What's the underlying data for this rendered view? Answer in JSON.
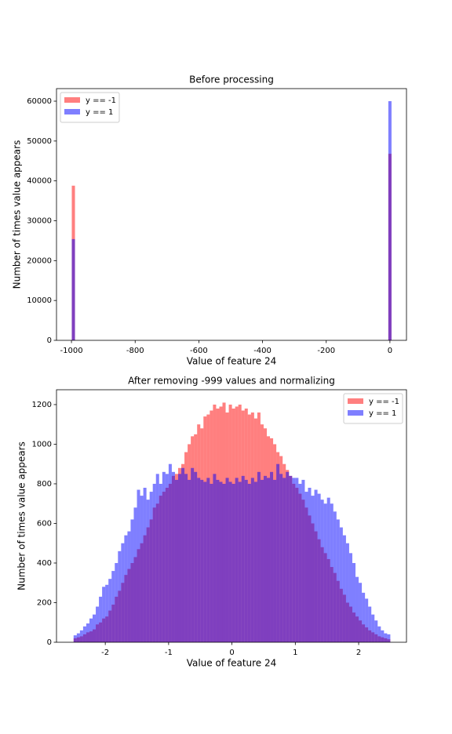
{
  "chart_data": [
    {
      "type": "histogram",
      "title": "Before processing",
      "xlabel": "Value of feature 24",
      "ylabel": "Number of times value appears",
      "bins": [
        -999,
        -989,
        -5,
        5
      ],
      "series": [
        {
          "name": "y == -1",
          "color": "#ff0000",
          "values": [
            38800,
            0,
            46800
          ]
        },
        {
          "name": "y == 1",
          "color": "#0000ff",
          "values": [
            25400,
            0,
            60000
          ]
        }
      ],
      "xlim": [
        -1047,
        52
      ],
      "ylim": [
        0,
        63150
      ],
      "xticks": [
        -1000,
        -800,
        -600,
        -400,
        -200,
        0
      ],
      "yticks": [
        0,
        10000,
        20000,
        30000,
        40000,
        50000,
        60000
      ],
      "legend": "upper left",
      "alpha": 0.5
    },
    {
      "type": "histogram",
      "title": "After removing -999 values and normalizing",
      "xlabel": "Value of feature 24",
      "ylabel": "Number of times value appears",
      "bins": [
        -2.5,
        -2.45,
        -2.4,
        -2.35,
        -2.3,
        -2.25,
        -2.2,
        -2.15,
        -2.1,
        -2.05,
        -2,
        -1.95,
        -1.9,
        -1.85,
        -1.8,
        -1.75,
        -1.7,
        -1.65,
        -1.6,
        -1.55,
        -1.5,
        -1.45,
        -1.4,
        -1.35,
        -1.3,
        -1.25,
        -1.2,
        -1.15,
        -1.1,
        -1.05,
        -1,
        -0.95,
        -0.9,
        -0.85,
        -0.8,
        -0.75,
        -0.7,
        -0.65,
        -0.6,
        -0.55,
        -0.5,
        -0.45,
        -0.4,
        -0.35,
        -0.3,
        -0.25,
        -0.2,
        -0.15,
        -0.1,
        -0.05,
        0,
        0.05,
        0.1,
        0.15,
        0.2,
        0.25,
        0.3,
        0.35,
        0.4,
        0.45,
        0.5,
        0.55,
        0.6,
        0.65,
        0.7,
        0.75,
        0.8,
        0.85,
        0.9,
        0.95,
        1,
        1.05,
        1.1,
        1.15,
        1.2,
        1.25,
        1.3,
        1.35,
        1.4,
        1.45,
        1.5,
        1.55,
        1.6,
        1.65,
        1.7,
        1.75,
        1.8,
        1.85,
        1.9,
        1.95,
        2,
        2.05,
        2.1,
        2.15,
        2.2,
        2.25,
        2.3,
        2.35,
        2.4,
        2.45,
        2.5
      ],
      "series": [
        {
          "name": "y == -1",
          "color": "#ff0000",
          "values": [
            20,
            25,
            30,
            40,
            50,
            55,
            65,
            90,
            100,
            120,
            130,
            160,
            190,
            230,
            260,
            300,
            340,
            370,
            400,
            430,
            470,
            500,
            540,
            580,
            620,
            680,
            700,
            740,
            760,
            780,
            800,
            840,
            850,
            880,
            900,
            960,
            1000,
            1040,
            1050,
            1100,
            1080,
            1140,
            1150,
            1170,
            1200,
            1180,
            1190,
            1210,
            1160,
            1200,
            1180,
            1190,
            1200,
            1170,
            1180,
            1150,
            1160,
            1130,
            1160,
            1100,
            1080,
            1040,
            1030,
            1000,
            960,
            940,
            900,
            870,
            840,
            800,
            780,
            750,
            720,
            680,
            640,
            600,
            560,
            520,
            480,
            450,
            420,
            380,
            350,
            310,
            270,
            240,
            200,
            180,
            150,
            130,
            110,
            90,
            75,
            60,
            50,
            40,
            30,
            25,
            20,
            15
          ]
        },
        {
          "name": "y == 1",
          "color": "#0000ff",
          "values": [
            35,
            45,
            60,
            80,
            95,
            120,
            140,
            180,
            230,
            280,
            290,
            320,
            360,
            400,
            460,
            500,
            540,
            560,
            620,
            680,
            770,
            740,
            780,
            720,
            760,
            800,
            850,
            800,
            860,
            850,
            900,
            860,
            820,
            850,
            880,
            850,
            820,
            880,
            860,
            830,
            820,
            810,
            830,
            800,
            850,
            820,
            810,
            800,
            830,
            810,
            800,
            830,
            810,
            840,
            820,
            800,
            830,
            810,
            860,
            820,
            840,
            830,
            860,
            820,
            900,
            850,
            830,
            860,
            840,
            830,
            830,
            800,
            820,
            760,
            780,
            740,
            770,
            750,
            720,
            700,
            730,
            700,
            660,
            620,
            580,
            540,
            500,
            450,
            400,
            330,
            300,
            250,
            220,
            180,
            140,
            110,
            80,
            60,
            45,
            40
          ]
        }
      ],
      "xlim": [
        -2.77,
        2.755
      ],
      "ylim": [
        0,
        1275
      ],
      "xticks": [
        -2,
        -1,
        0,
        1,
        2
      ],
      "yticks": [
        0,
        200,
        400,
        600,
        800,
        1000,
        1200
      ],
      "legend": "upper right",
      "alpha": 0.5
    }
  ]
}
